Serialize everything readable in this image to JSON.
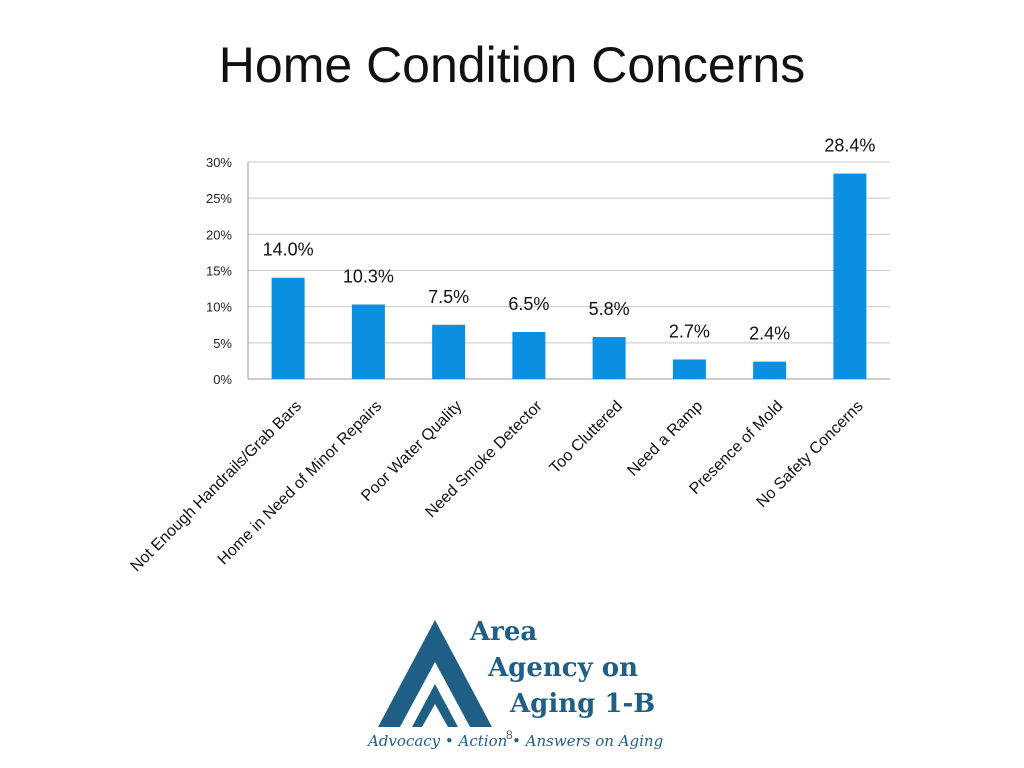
{
  "slide": {
    "title": "Home Condition Concerns",
    "page_number": "8"
  },
  "logo": {
    "line1": "Area",
    "line2": "Agency on",
    "line3": "Aging 1-B",
    "tagline": "Advocacy • Action • Answers on Aging",
    "color": "#1f5f86"
  },
  "chart_data": {
    "type": "bar",
    "title": "",
    "xlabel": "",
    "ylabel": "",
    "categories": [
      "Not Enough Handrails/Grab Bars",
      "Home in Need of Minor Repairs",
      "Poor Water Quality",
      "Need Smoke Detector",
      "Too Cluttered",
      "Need a Ramp",
      "Presence of Mold",
      "No Safety Concerns"
    ],
    "values": [
      14.0,
      10.3,
      7.5,
      6.5,
      5.8,
      2.7,
      2.4,
      28.4
    ],
    "data_labels": [
      "14.0%",
      "10.3%",
      "7.5%",
      "6.5%",
      "5.8%",
      "2.7%",
      "2.4%",
      "28.4%"
    ],
    "ylim": [
      0,
      30
    ],
    "yticks": [
      "0%",
      "5%",
      "10%",
      "15%",
      "20%",
      "25%",
      "30%"
    ],
    "grid": true,
    "bar_color": "#0b8fe0"
  }
}
